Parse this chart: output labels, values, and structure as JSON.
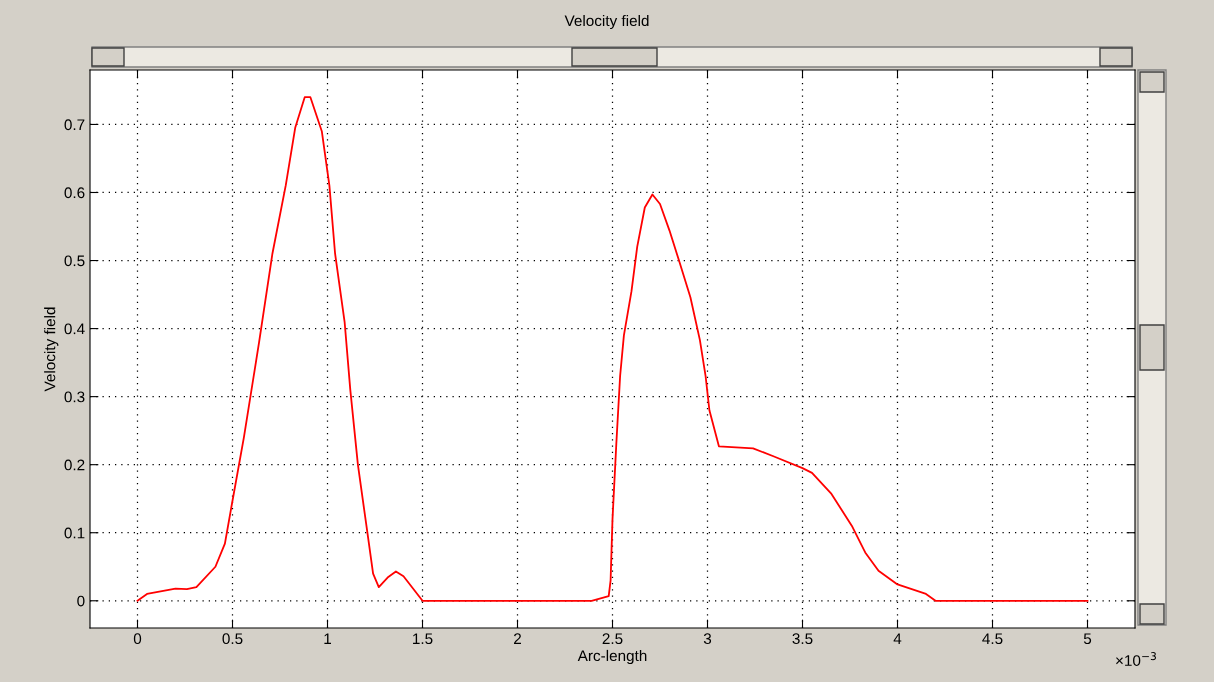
{
  "chart_data": {
    "type": "line",
    "title": "Velocity field",
    "xlabel": "Arc-length",
    "ylabel": "Velocity field",
    "annotations": [
      "×10$^{−3}$"
    ],
    "xlim": [
      -0.25,
      5.25
    ],
    "ylim": [
      -0.04,
      0.78
    ],
    "xticks": [
      0,
      0.5,
      1,
      1.5,
      2,
      2.5,
      3,
      3.5,
      4,
      4.5,
      5
    ],
    "yticks": [
      0,
      0.1,
      0.2,
      0.3,
      0.4,
      0.5,
      0.6,
      0.7
    ],
    "grid": true,
    "line_style": "solid",
    "marker": "none",
    "series": [
      {
        "color": "#ff0000",
        "x": [
          0,
          0.05,
          0.2,
          0.26,
          0.31,
          0.41,
          0.46,
          0.5,
          0.56,
          0.64,
          0.71,
          0.78,
          0.83,
          0.88,
          0.91,
          0.97,
          1.01,
          1.04,
          1.09,
          1.12,
          1.16,
          1.21,
          1.24,
          1.27,
          1.32,
          1.36,
          1.4,
          1.5,
          2.39,
          2.48,
          2.49,
          2.5,
          2.52,
          2.54,
          2.56,
          2.6,
          2.63,
          2.67,
          2.71,
          2.75,
          2.8,
          2.85,
          2.91,
          2.96,
          2.99,
          3.01,
          3.06,
          3.24,
          3.35,
          3.5,
          3.55,
          3.65,
          3.76,
          3.83,
          3.9,
          4.0,
          4.15,
          4.2,
          5.0
        ],
        "values": [
          0,
          0.01,
          0.018,
          0.017,
          0.02,
          0.05,
          0.084,
          0.147,
          0.24,
          0.38,
          0.51,
          0.61,
          0.695,
          0.74,
          0.74,
          0.69,
          0.61,
          0.51,
          0.41,
          0.31,
          0.2,
          0.1,
          0.04,
          0.02,
          0.035,
          0.043,
          0.036,
          0,
          0,
          0.007,
          0.03,
          0.12,
          0.23,
          0.33,
          0.39,
          0.455,
          0.52,
          0.578,
          0.597,
          0.583,
          0.544,
          0.5,
          0.446,
          0.383,
          0.33,
          0.28,
          0.227,
          0.224,
          0.212,
          0.195,
          0.188,
          0.158,
          0.11,
          0.071,
          0.044,
          0.024,
          0.01,
          0,
          0
        ]
      }
    ]
  }
}
